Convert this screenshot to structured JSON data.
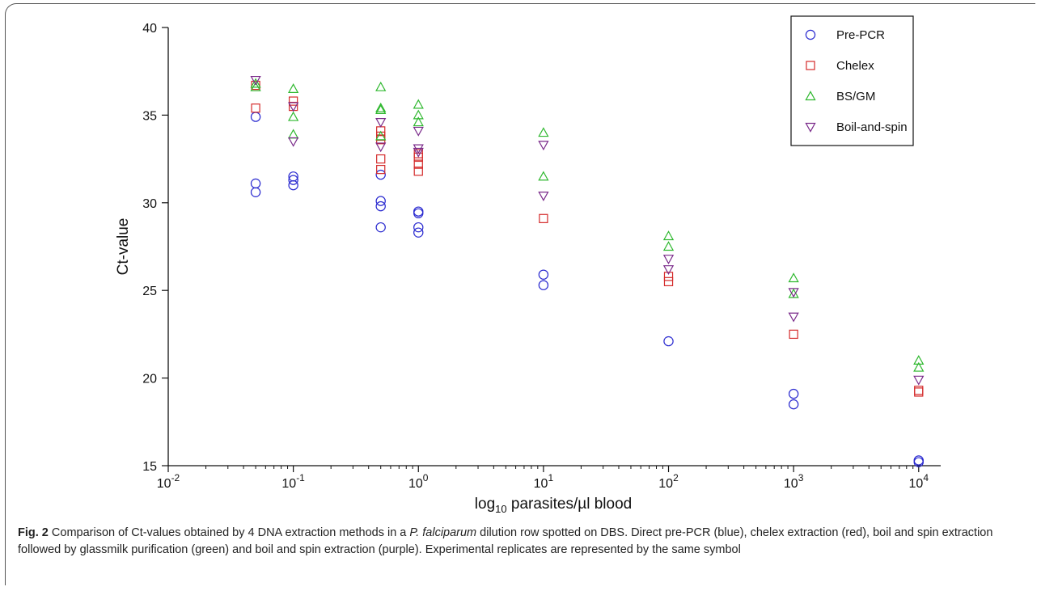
{
  "chart_data": {
    "type": "scatter",
    "xscale": "log",
    "xlim": [
      0.01,
      15000
    ],
    "ylim": [
      15,
      40
    ],
    "xlabel_prefix": "log",
    "xlabel_sub": "10",
    "xlabel_rest": " parasites/µl blood",
    "ylabel": "Ct-value",
    "yticks": [
      "15",
      "20",
      "25",
      "30",
      "35",
      "40"
    ],
    "xticks": [
      {
        "base": "10",
        "exp": "-2"
      },
      {
        "base": "10",
        "exp": "-1"
      },
      {
        "base": "10",
        "exp": "0"
      },
      {
        "base": "10",
        "exp": "1"
      },
      {
        "base": "10",
        "exp": "2"
      },
      {
        "base": "10",
        "exp": "3"
      },
      {
        "base": "10",
        "exp": "4"
      }
    ],
    "legend_position": "top-right",
    "series": [
      {
        "name": "Pre-PCR",
        "marker": "circle",
        "color": "#2b2bd0",
        "x": [
          0.05,
          0.05,
          0.05,
          0.1,
          0.1,
          0.1,
          0.5,
          0.5,
          0.5,
          0.5,
          1,
          1,
          1,
          1,
          10,
          10,
          100,
          1000,
          1000,
          10000,
          10000
        ],
        "y": [
          34.9,
          31.1,
          30.6,
          31.5,
          31.3,
          31.0,
          31.6,
          30.1,
          29.8,
          28.6,
          29.5,
          29.4,
          28.6,
          28.3,
          25.9,
          25.3,
          22.1,
          19.1,
          18.5,
          15.3,
          15.2
        ]
      },
      {
        "name": "Chelex",
        "marker": "square",
        "color": "#d42a2a",
        "x": [
          0.05,
          0.05,
          0.1,
          0.1,
          0.5,
          0.5,
          0.5,
          0.5,
          0.5,
          1,
          1,
          1,
          1,
          10,
          100,
          100,
          1000,
          10000,
          10000
        ],
        "y": [
          36.7,
          35.4,
          35.8,
          35.5,
          34.1,
          33.8,
          33.6,
          32.5,
          31.9,
          32.8,
          32.6,
          32.2,
          31.8,
          29.1,
          25.8,
          25.5,
          22.5,
          19.3,
          19.2
        ]
      },
      {
        "name": "BS/GM",
        "marker": "triangle-up",
        "color": "#2fb82f",
        "x": [
          0.05,
          0.05,
          0.1,
          0.1,
          0.1,
          0.5,
          0.5,
          0.5,
          0.5,
          1,
          1,
          1,
          10,
          10,
          100,
          100,
          1000,
          1000,
          10000,
          10000
        ],
        "y": [
          36.8,
          36.6,
          36.5,
          34.9,
          33.9,
          36.6,
          35.4,
          35.3,
          33.8,
          35.6,
          35.0,
          34.6,
          34.0,
          31.5,
          28.1,
          27.5,
          25.7,
          24.8,
          21.0,
          20.6
        ]
      },
      {
        "name": "Boil-and-spin",
        "marker": "triangle-down",
        "color": "#7a2a8a",
        "x": [
          0.05,
          0.1,
          0.1,
          0.5,
          0.5,
          1,
          1,
          1,
          10,
          10,
          100,
          100,
          1000,
          1000,
          10000
        ],
        "y": [
          37.0,
          35.5,
          33.5,
          34.6,
          33.2,
          34.1,
          33.1,
          32.9,
          33.3,
          30.4,
          26.8,
          26.2,
          24.9,
          23.5,
          19.9
        ]
      }
    ]
  },
  "caption": {
    "lead": "Fig. 2",
    "text_a": "  Comparison of Ct-values obtained by 4 DNA extraction methods in a ",
    "italic": "P. falciparum",
    "text_b": " dilution row spotted on DBS. Direct pre-PCR (blue), chelex extraction (red), boil and spin extraction followed by glassmilk purification (green) and boil and spin extraction (purple). Experimental replicates are represented by the same symbol"
  }
}
